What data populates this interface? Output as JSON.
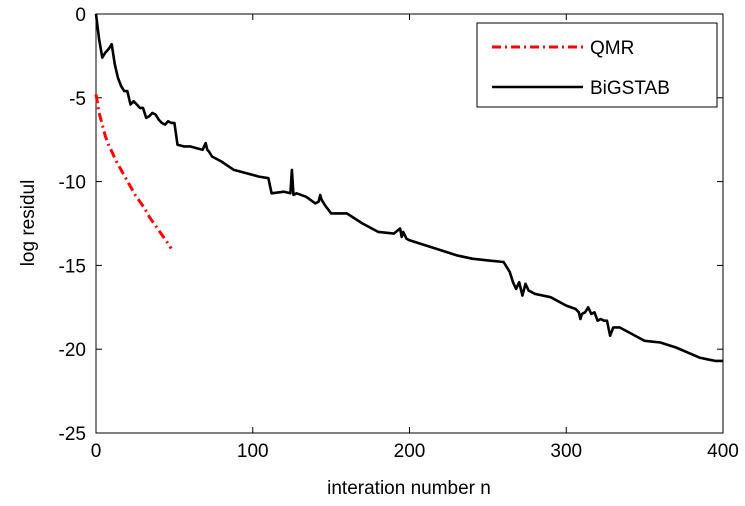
{
  "chart_data": {
    "type": "line",
    "title": "",
    "xlabel": "interation number n",
    "ylabel": "log residul",
    "xlim": [
      0,
      400
    ],
    "ylim": [
      -25,
      0
    ],
    "xticks": [
      0,
      100,
      200,
      300,
      400
    ],
    "yticks": [
      0,
      -5,
      -10,
      -15,
      -20,
      -25
    ],
    "xtick_labels": [
      "0",
      "100",
      "200",
      "300",
      "400"
    ],
    "ytick_labels": [
      "0",
      "-5",
      "-10",
      "-15",
      "-20",
      "-25"
    ],
    "grid": false,
    "legend_position": "top-right",
    "series": [
      {
        "name": "QMR",
        "color": "#ff0000",
        "style": "dash-dot",
        "x": [
          0,
          2,
          4,
          6,
          8,
          10,
          13,
          16,
          19,
          22,
          25,
          28,
          31,
          34,
          37,
          40,
          43,
          46,
          48
        ],
        "y": [
          -4.8,
          -5.9,
          -6.6,
          -7.3,
          -7.8,
          -8.2,
          -8.8,
          -9.3,
          -9.8,
          -10.3,
          -10.8,
          -11.2,
          -11.6,
          -12.1,
          -12.5,
          -12.9,
          -13.3,
          -13.7,
          -14.0
        ]
      },
      {
        "name": "BiGSTAB",
        "color": "#000000",
        "style": "solid",
        "x": [
          0,
          2,
          4,
          6,
          8,
          10,
          12,
          14,
          16,
          18,
          20,
          22,
          24,
          26,
          28,
          30,
          32,
          34,
          36,
          38,
          40,
          42,
          44,
          46,
          48,
          50,
          52,
          56,
          60,
          64,
          68,
          70,
          71,
          72,
          74,
          80,
          88,
          96,
          104,
          110,
          112,
          120,
          124,
          125,
          126,
          128,
          134,
          140,
          142,
          143,
          144,
          146,
          150,
          160,
          170,
          180,
          190,
          194,
          195,
          196,
          198,
          200,
          210,
          220,
          230,
          240,
          250,
          260,
          264,
          266,
          268,
          270,
          272,
          274,
          276,
          278,
          280,
          290,
          300,
          306,
          308,
          309,
          310,
          312,
          314,
          316,
          318,
          320,
          322,
          324,
          326,
          328,
          330,
          334,
          340,
          350,
          360,
          370,
          380,
          385,
          390,
          395,
          400
        ],
        "y": [
          0,
          -1.5,
          -2.6,
          -2.3,
          -2.1,
          -1.8,
          -3.0,
          -3.8,
          -4.3,
          -4.6,
          -4.6,
          -5.4,
          -5.2,
          -5.4,
          -5.6,
          -5.6,
          -6.2,
          -6.1,
          -5.9,
          -6.0,
          -6.3,
          -6.5,
          -6.6,
          -6.4,
          -6.5,
          -6.5,
          -7.8,
          -7.9,
          -7.9,
          -8.0,
          -8.1,
          -7.7,
          -8.1,
          -8.2,
          -8.5,
          -8.8,
          -9.3,
          -9.5,
          -9.7,
          -9.8,
          -10.7,
          -10.6,
          -10.7,
          -9.3,
          -10.8,
          -10.7,
          -10.9,
          -11.3,
          -11.2,
          -10.8,
          -11.1,
          -11.4,
          -11.9,
          -11.9,
          -12.5,
          -13.0,
          -13.1,
          -12.8,
          -13.3,
          -13.0,
          -13.4,
          -13.5,
          -13.8,
          -14.1,
          -14.4,
          -14.6,
          -14.7,
          -14.8,
          -15.4,
          -16.0,
          -16.4,
          -16.0,
          -16.8,
          -16.1,
          -16.5,
          -16.6,
          -16.7,
          -16.9,
          -17.4,
          -17.6,
          -17.8,
          -18.2,
          -17.9,
          -17.8,
          -17.5,
          -17.9,
          -17.8,
          -18.3,
          -18.2,
          -18.3,
          -18.3,
          -19.2,
          -18.7,
          -18.7,
          -19.0,
          -19.5,
          -19.6,
          -19.9,
          -20.3,
          -20.5,
          -20.6,
          -20.7,
          -20.7
        ]
      }
    ]
  }
}
